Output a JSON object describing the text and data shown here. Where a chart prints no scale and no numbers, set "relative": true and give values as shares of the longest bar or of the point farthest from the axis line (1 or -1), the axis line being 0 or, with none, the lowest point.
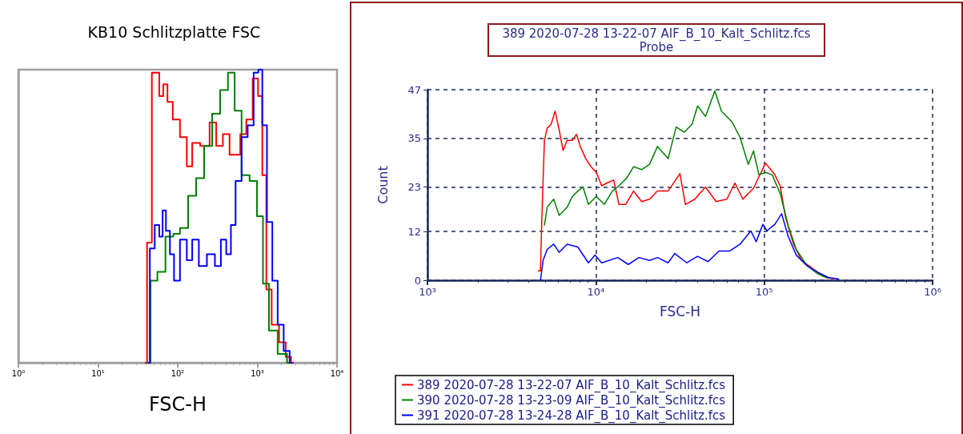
{
  "chart_data": [
    {
      "type": "step",
      "title": "KB10 Schlitzplatte FSC",
      "xlabel": "FSC-H",
      "relative": true,
      "log": "x",
      "grid": false,
      "legend": false,
      "tick_labels": "x",
      "xlim": [
        1,
        10000
      ],
      "xticks": [
        {
          "value": 1,
          "label": "10⁰"
        },
        {
          "value": 10,
          "label": "10¹"
        },
        {
          "value": 100,
          "label": "10²"
        },
        {
          "value": 1000,
          "label": "10³"
        },
        {
          "value": 10000,
          "label": "10⁴"
        }
      ],
      "series": [
        {
          "color": "#ff0000",
          "x": [
            38.6,
            44,
            51,
            55.6,
            62,
            70,
            79,
            95,
            120,
            141,
            164,
            224,
            282,
            329,
            414,
            484,
            565,
            659,
            800,
            955,
            1089,
            1222,
            1374,
            1665,
            2100,
            2450,
            2860
          ],
          "values": [
            0,
            0.41,
            0.99,
            0.99,
            0.91,
            0.95,
            0.89,
            0.83,
            0.77,
            0.67,
            0.75,
            0.74,
            0.82,
            0.74,
            0.78,
            0.71,
            0.71,
            0.78,
            0.83,
            0.97,
            0.91,
            0.64,
            0.25,
            0.13,
            0.07,
            0.02,
            0
          ]
        },
        {
          "color": "#008000",
          "x": [
            40.4,
            51.4,
            60,
            82,
            95,
            120,
            152,
            191,
            241,
            304,
            383,
            476,
            565,
            711,
            898,
            1089,
            1270,
            1540,
            2100,
            2650
          ],
          "values": [
            0,
            0.28,
            0.31,
            0.43,
            0.44,
            0.46,
            0.57,
            0.63,
            0.74,
            0.85,
            0.93,
            0.99,
            0.86,
            0.64,
            0.62,
            0.5,
            0.27,
            0.11,
            0.03,
            0
          ]
        },
        {
          "color": "#0000ff",
          "x": [
            42,
            47.6,
            55.6,
            62,
            67.5,
            75,
            85,
            95,
            120,
            141,
            164,
            207,
            261,
            329,
            369,
            448,
            484,
            586,
            685,
            832,
            970,
            1089,
            1222,
            1425,
            1665,
            1945,
            2355,
            2750
          ],
          "values": [
            0,
            0.39,
            0.47,
            0.43,
            0.52,
            0.45,
            0.37,
            0.28,
            0.42,
            0.35,
            0.42,
            0.33,
            0.37,
            0.33,
            0.42,
            0.37,
            0.47,
            0.62,
            0.77,
            0.81,
            0.99,
            1,
            0.81,
            0.48,
            0.28,
            0.13,
            0.04,
            0
          ]
        }
      ]
    },
    {
      "type": "line",
      "title": "389 2020-07-28 13-22-07 AIF_B_10_Kalt_Schlitz.fcs",
      "subtitle": "Probe",
      "xlabel": "FSC-H",
      "ylabel": "Count",
      "log": "x",
      "grid": true,
      "legend": "bottom",
      "xlim": [
        1000,
        1000000
      ],
      "xticks": [
        {
          "value": 1000,
          "label": "10³"
        },
        {
          "value": 10000,
          "label": "10⁴"
        },
        {
          "value": 100000,
          "label": "10⁵"
        },
        {
          "value": 1000000,
          "label": "10⁶"
        }
      ],
      "ylim": [
        0,
        47
      ],
      "yticks": [
        0,
        12,
        23,
        35,
        47
      ],
      "series": [
        {
          "name": "389 2020-07-28 13-22-07 AIF_B_10_Kalt_Schlitz.fcs",
          "color": "#ff0000",
          "x": [
            4530,
            4690,
            4770,
            4950,
            5140,
            5430,
            5730,
            6060,
            6390,
            6750,
            7260,
            7670,
            8090,
            8710,
            9370,
            10070,
            10830,
            11650,
            12760,
            13720,
            15030,
            16760,
            18700,
            20850,
            23230,
            26870,
            31600,
            34040,
            38700,
            44800,
            51800,
            60000,
            67000,
            74700,
            86400,
            101800,
            115700,
            124400,
            133900,
            149300,
            166600,
            192800,
            223100,
            258500
          ],
          "values": [
            2.3,
            2.3,
            14,
            34.5,
            37.5,
            38.5,
            41.7,
            37,
            32,
            34.5,
            34.5,
            36,
            33,
            30,
            28,
            26.6,
            23.3,
            24,
            24.7,
            18.7,
            18.7,
            22,
            19.4,
            20,
            22,
            22,
            26.3,
            18.7,
            20,
            23,
            19.4,
            20,
            24,
            20,
            22.7,
            28.9,
            26,
            23.3,
            15.5,
            8.9,
            4.9,
            3,
            1,
            0.3
          ]
        },
        {
          "name": "390 2020-07-28 13-23-09 AIF_B_10_Kalt_Schlitz.fcs",
          "color": "#008000",
          "x": [
            4950,
            5140,
            5620,
            6060,
            6750,
            7260,
            7820,
            8400,
            9030,
            10070,
            11220,
            12530,
            13720,
            15310,
            16760,
            18700,
            20850,
            23230,
            26870,
            30000,
            33500,
            37300,
            40200,
            44800,
            50900,
            55700,
            64500,
            71900,
            80400,
            86400,
            93000,
            101800,
            111600,
            124400,
            138900,
            155000,
            179400,
            207600,
            240000
          ],
          "values": [
            13.5,
            18,
            20,
            16,
            18,
            20.7,
            22,
            23,
            18.7,
            20.7,
            18.7,
            22,
            23.3,
            25.3,
            28,
            27.3,
            28.6,
            33,
            30,
            37.8,
            36.5,
            38.5,
            43,
            40.4,
            46.7,
            41.7,
            39,
            35.2,
            28.6,
            31.9,
            26,
            26.6,
            26,
            21.4,
            13.5,
            7.6,
            3.6,
            1.6,
            0.5
          ]
        },
        {
          "name": "391 2020-07-28 13-24-28 AIF_B_10_Kalt_Schlitz.fcs",
          "color": "#0000ff",
          "x": [
            4690,
            4860,
            5140,
            5620,
            6060,
            6750,
            7820,
            9030,
            9890,
            10830,
            13500,
            15600,
            18040,
            20850,
            23230,
            26870,
            29400,
            34700,
            40200,
            46400,
            53800,
            62200,
            71900,
            83300,
            89600,
            98200,
            103700,
            115700,
            126900,
            138900,
            155000,
            179400,
            207600,
            240000,
            278000
          ],
          "values": [
            0,
            4.9,
            7.6,
            8.9,
            6.9,
            8.9,
            8.2,
            4.3,
            6.2,
            4.3,
            5.6,
            3.9,
            5.6,
            4.9,
            5.6,
            4.3,
            6.6,
            4.3,
            5.9,
            4.6,
            7.2,
            7.2,
            8.9,
            12.2,
            9.5,
            13.8,
            12.2,
            13.8,
            16.4,
            10.8,
            6.2,
            3.6,
            2,
            0.7,
            0.3
          ]
        }
      ]
    }
  ]
}
